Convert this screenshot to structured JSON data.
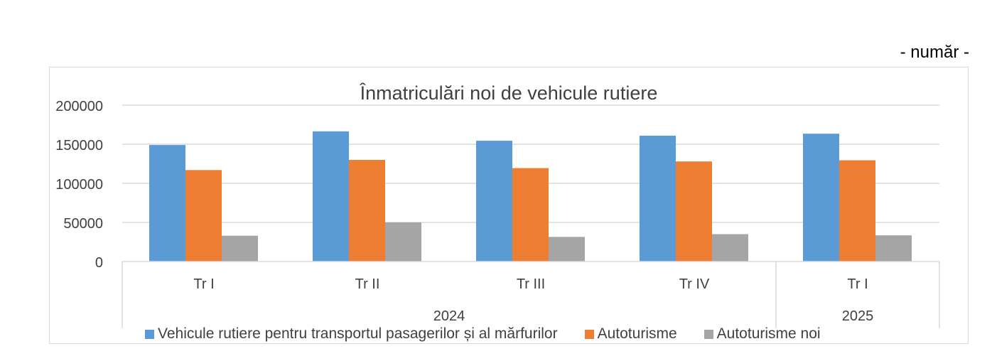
{
  "unit_label": "- număr -",
  "chart_data": {
    "type": "bar",
    "title": "Înmatriculări noi de vehicule rutiere",
    "xlabel": "",
    "ylabel": "",
    "ylim": [
      0,
      200000
    ],
    "yticks": [
      "0",
      "50000",
      "100000",
      "150000",
      "200000"
    ],
    "categories": [
      "Tr I",
      "Tr II",
      "Tr III",
      "Tr IV",
      "Tr I"
    ],
    "category_groups": [
      {
        "label": "2024",
        "count": 4
      },
      {
        "label": "2025",
        "count": 1
      }
    ],
    "grid": true,
    "legend_position": "bottom",
    "series": [
      {
        "name": "Vehicule rutiere pentru transportul pasagerilor și al mărfurilor",
        "color": "#5b9bd5",
        "values": [
          149000,
          166500,
          154500,
          161000,
          163500
        ]
      },
      {
        "name": "Autoturisme",
        "color": "#ed7d31",
        "values": [
          117000,
          130000,
          119500,
          128000,
          129500
        ]
      },
      {
        "name": "Autoturisme noi",
        "color": "#a5a5a5",
        "values": [
          33000,
          50000,
          31500,
          35000,
          33500
        ]
      }
    ]
  }
}
